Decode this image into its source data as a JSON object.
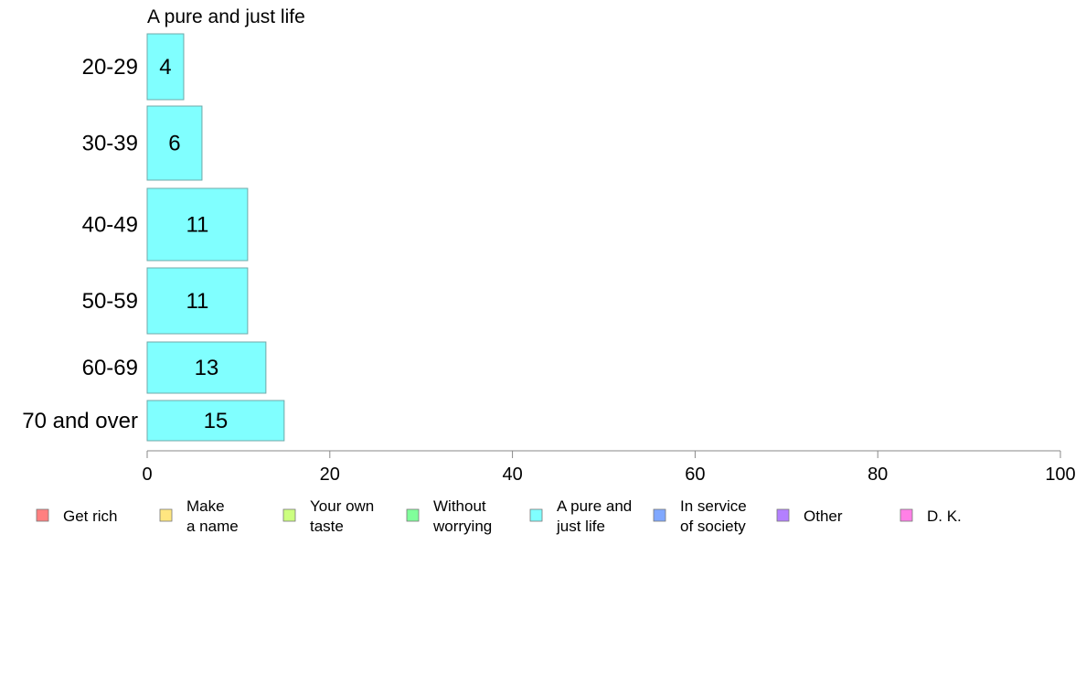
{
  "chart_data": {
    "type": "bar",
    "orientation": "horizontal",
    "title": "A pure and just life",
    "xlabel": "",
    "ylabel": "",
    "categories": [
      "20-29",
      "30-39",
      "40-49",
      "50-59",
      "60-69",
      "70 and over"
    ],
    "series": [
      {
        "name": "A pure and just life",
        "values": [
          4,
          6,
          11,
          11,
          13,
          15
        ],
        "color": "#80ffff"
      }
    ],
    "value_labels": [
      "4",
      "6",
      "11",
      "11",
      "13",
      "15"
    ],
    "xlim": [
      0,
      100
    ],
    "xticks": [
      "0",
      "20",
      "40",
      "60",
      "80",
      "100"
    ],
    "grid": false,
    "legend_position": "bottom",
    "legend": [
      {
        "lines": [
          "Get rich"
        ],
        "color": "#ff8080"
      },
      {
        "lines": [
          "Make",
          "a name"
        ],
        "color": "#ffe680"
      },
      {
        "lines": [
          "Your own",
          "taste"
        ],
        "color": "#ccff80"
      },
      {
        "lines": [
          "Without",
          "worrying"
        ],
        "color": "#80ff9a"
      },
      {
        "lines": [
          "A pure and",
          "just life"
        ],
        "color": "#80ffff"
      },
      {
        "lines": [
          "In service",
          "of society"
        ],
        "color": "#80a8ff"
      },
      {
        "lines": [
          "Other"
        ],
        "color": "#b380ff"
      },
      {
        "lines": [
          "D. K."
        ],
        "color": "#ff80e6"
      }
    ]
  }
}
